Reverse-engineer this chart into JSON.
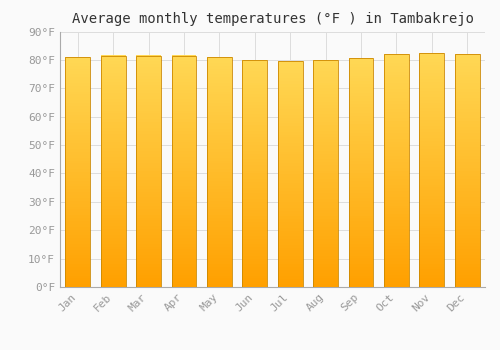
{
  "title": "Average monthly temperatures (°F ) in Tambakrejo",
  "months": [
    "Jan",
    "Feb",
    "Mar",
    "Apr",
    "May",
    "Jun",
    "Jul",
    "Aug",
    "Sep",
    "Oct",
    "Nov",
    "Dec"
  ],
  "values": [
    81,
    81.5,
    81.5,
    81.5,
    81,
    80,
    79.5,
    80,
    80.5,
    82,
    82.5,
    82
  ],
  "bar_color_bottom": "#FFA500",
  "bar_color_top": "#FFD855",
  "bar_edge_color": "#CC8800",
  "background_color": "#FAFAFA",
  "ylim": [
    0,
    90
  ],
  "yticks": [
    0,
    10,
    20,
    30,
    40,
    50,
    60,
    70,
    80,
    90
  ],
  "ytick_labels": [
    "0°F",
    "10°F",
    "20°F",
    "30°F",
    "40°F",
    "50°F",
    "60°F",
    "70°F",
    "80°F",
    "90°F"
  ],
  "grid_color": "#DDDDDD",
  "title_fontsize": 10,
  "tick_fontsize": 8,
  "tick_color": "#999999",
  "font_family": "monospace"
}
